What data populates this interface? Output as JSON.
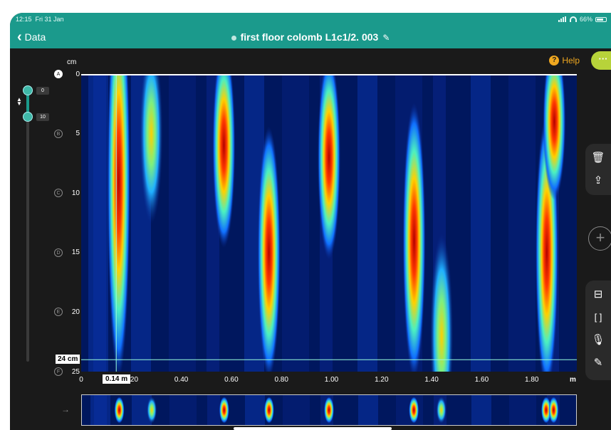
{
  "status_bar": {
    "time": "12:15",
    "date": "Fri 31 Jan",
    "battery": "66%"
  },
  "nav": {
    "back_label": "Data",
    "title": "first floor colomb L1c1/2. 003"
  },
  "help_label": "Help",
  "more_label": "···",
  "depth_axis": {
    "unit": "cm",
    "rows": [
      {
        "marker": "A",
        "value": "0"
      },
      {
        "marker": "B",
        "value": "5"
      },
      {
        "marker": "C",
        "value": "10"
      },
      {
        "marker": "D",
        "value": "15"
      },
      {
        "marker": "E",
        "value": "20"
      },
      {
        "marker": "F",
        "value": "25"
      }
    ]
  },
  "range_slider": {
    "top_value": "0",
    "bottom_value": "10"
  },
  "x_axis": {
    "unit": "m",
    "ticks": [
      "0",
      "0.20",
      "0.40",
      "0.60",
      "0.80",
      "1.00",
      "1.20",
      "1.40",
      "1.60",
      "1.80"
    ]
  },
  "cursor": {
    "position_label": "0.14 m",
    "depth_label": "24 cm"
  },
  "scan": {
    "x_range": [
      0,
      1.98
    ],
    "depth_range": [
      0,
      25
    ],
    "anomalies": [
      {
        "x": 0.15,
        "depth_start": 0,
        "depth_end": 25,
        "peak": 9,
        "intensity": 0.8
      },
      {
        "x": 0.28,
        "depth_start": 1,
        "depth_end": 12,
        "peak": 5,
        "intensity": 0.6
      },
      {
        "x": 0.57,
        "depth_start": 1,
        "depth_end": 14,
        "peak": 6,
        "intensity": 0.85
      },
      {
        "x": 0.75,
        "depth_start": 6,
        "depth_end": 25,
        "peak": 15,
        "intensity": 1.0
      },
      {
        "x": 0.99,
        "depth_start": 0,
        "depth_end": 15,
        "peak": 7,
        "intensity": 0.9
      },
      {
        "x": 1.33,
        "depth_start": 6,
        "depth_end": 25,
        "peak": 14,
        "intensity": 1.0
      },
      {
        "x": 1.44,
        "depth_start": 14,
        "depth_end": 25,
        "peak": 22,
        "intensity": 0.5
      },
      {
        "x": 1.86,
        "depth_start": 4,
        "depth_end": 25,
        "peak": 15,
        "intensity": 1.0
      },
      {
        "x": 1.89,
        "depth_start": 0,
        "depth_end": 10,
        "peak": 4,
        "intensity": 0.8
      }
    ]
  },
  "sidebar_tools": {
    "delete_icon": "trash-icon",
    "share_icon": "share-icon",
    "add_icon": "plus-icon",
    "split_icon": "split-view-icon",
    "frame_icon": "frame-icon",
    "mic_icon": "microphone-icon",
    "pen_icon": "pen-icon"
  }
}
